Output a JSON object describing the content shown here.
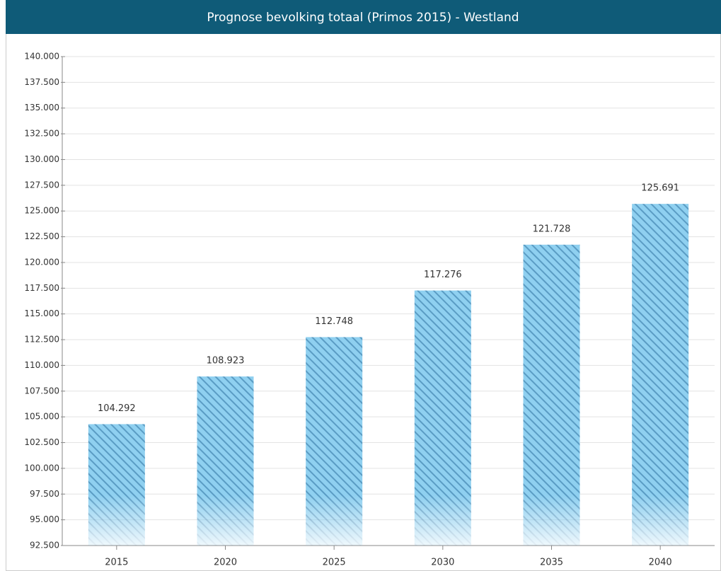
{
  "chart_data": {
    "type": "bar",
    "title": "Prognose bevolking totaal (Primos 2015) - Westland",
    "categories": [
      "2015",
      "2020",
      "2025",
      "2030",
      "2035",
      "2040"
    ],
    "values": [
      104292,
      108923,
      112748,
      117276,
      121728,
      125691
    ],
    "value_labels": [
      "104.292",
      "108.923",
      "112.748",
      "117.276",
      "121.728",
      "125.691"
    ],
    "color": "#8fd0f0",
    "ylim": [
      92500,
      140000
    ],
    "yticks": [
      {
        "value": 92500,
        "label": "92.500"
      },
      {
        "value": 95000,
        "label": "95.000"
      },
      {
        "value": 97500,
        "label": "97.500"
      },
      {
        "value": 100000,
        "label": "100.000"
      },
      {
        "value": 102500,
        "label": "102.500"
      },
      {
        "value": 105000,
        "label": "105.000"
      },
      {
        "value": 107500,
        "label": "107.500"
      },
      {
        "value": 110000,
        "label": "110.000"
      },
      {
        "value": 112500,
        "label": "112.500"
      },
      {
        "value": 115000,
        "label": "115.000"
      },
      {
        "value": 117500,
        "label": "117.500"
      },
      {
        "value": 120000,
        "label": "120.000"
      },
      {
        "value": 122500,
        "label": "122.500"
      },
      {
        "value": 125000,
        "label": "125.000"
      },
      {
        "value": 127500,
        "label": "127.500"
      },
      {
        "value": 130000,
        "label": "130.000"
      },
      {
        "value": 132500,
        "label": "132.500"
      },
      {
        "value": 135000,
        "label": "135.000"
      },
      {
        "value": 137500,
        "label": "137.500"
      },
      {
        "value": 140000,
        "label": "140.000"
      }
    ],
    "grid": true
  }
}
